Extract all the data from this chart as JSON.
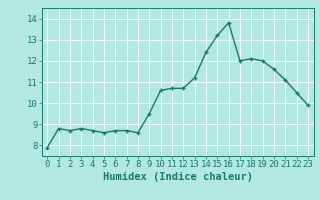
{
  "x": [
    0,
    1,
    2,
    3,
    4,
    5,
    6,
    7,
    8,
    9,
    10,
    11,
    12,
    13,
    14,
    15,
    16,
    17,
    18,
    19,
    20,
    21,
    22,
    23
  ],
  "y": [
    7.9,
    8.8,
    8.7,
    8.8,
    8.7,
    8.6,
    8.7,
    8.7,
    8.6,
    9.5,
    10.6,
    10.7,
    10.7,
    11.2,
    12.4,
    13.2,
    13.8,
    12.0,
    12.1,
    12.0,
    11.6,
    11.1,
    10.5,
    9.9
  ],
  "xlim": [
    -0.5,
    23.5
  ],
  "ylim": [
    7.5,
    14.5
  ],
  "yticks": [
    8,
    9,
    10,
    11,
    12,
    13,
    14
  ],
  "xticks": [
    0,
    1,
    2,
    3,
    4,
    5,
    6,
    7,
    8,
    9,
    10,
    11,
    12,
    13,
    14,
    15,
    16,
    17,
    18,
    19,
    20,
    21,
    22,
    23
  ],
  "xlabel": "Humidex (Indice chaleur)",
  "line_color": "#1a7a6e",
  "marker": "+",
  "background_color": "#b2e8e0",
  "grid_color": "#d0eeea",
  "tick_color": "#1a7a6e",
  "label_color": "#1a7a6e",
  "xlabel_fontsize": 7.5,
  "tick_fontsize": 6.5,
  "linewidth": 1.0,
  "markersize": 3.5,
  "markeredgewidth": 1.0
}
